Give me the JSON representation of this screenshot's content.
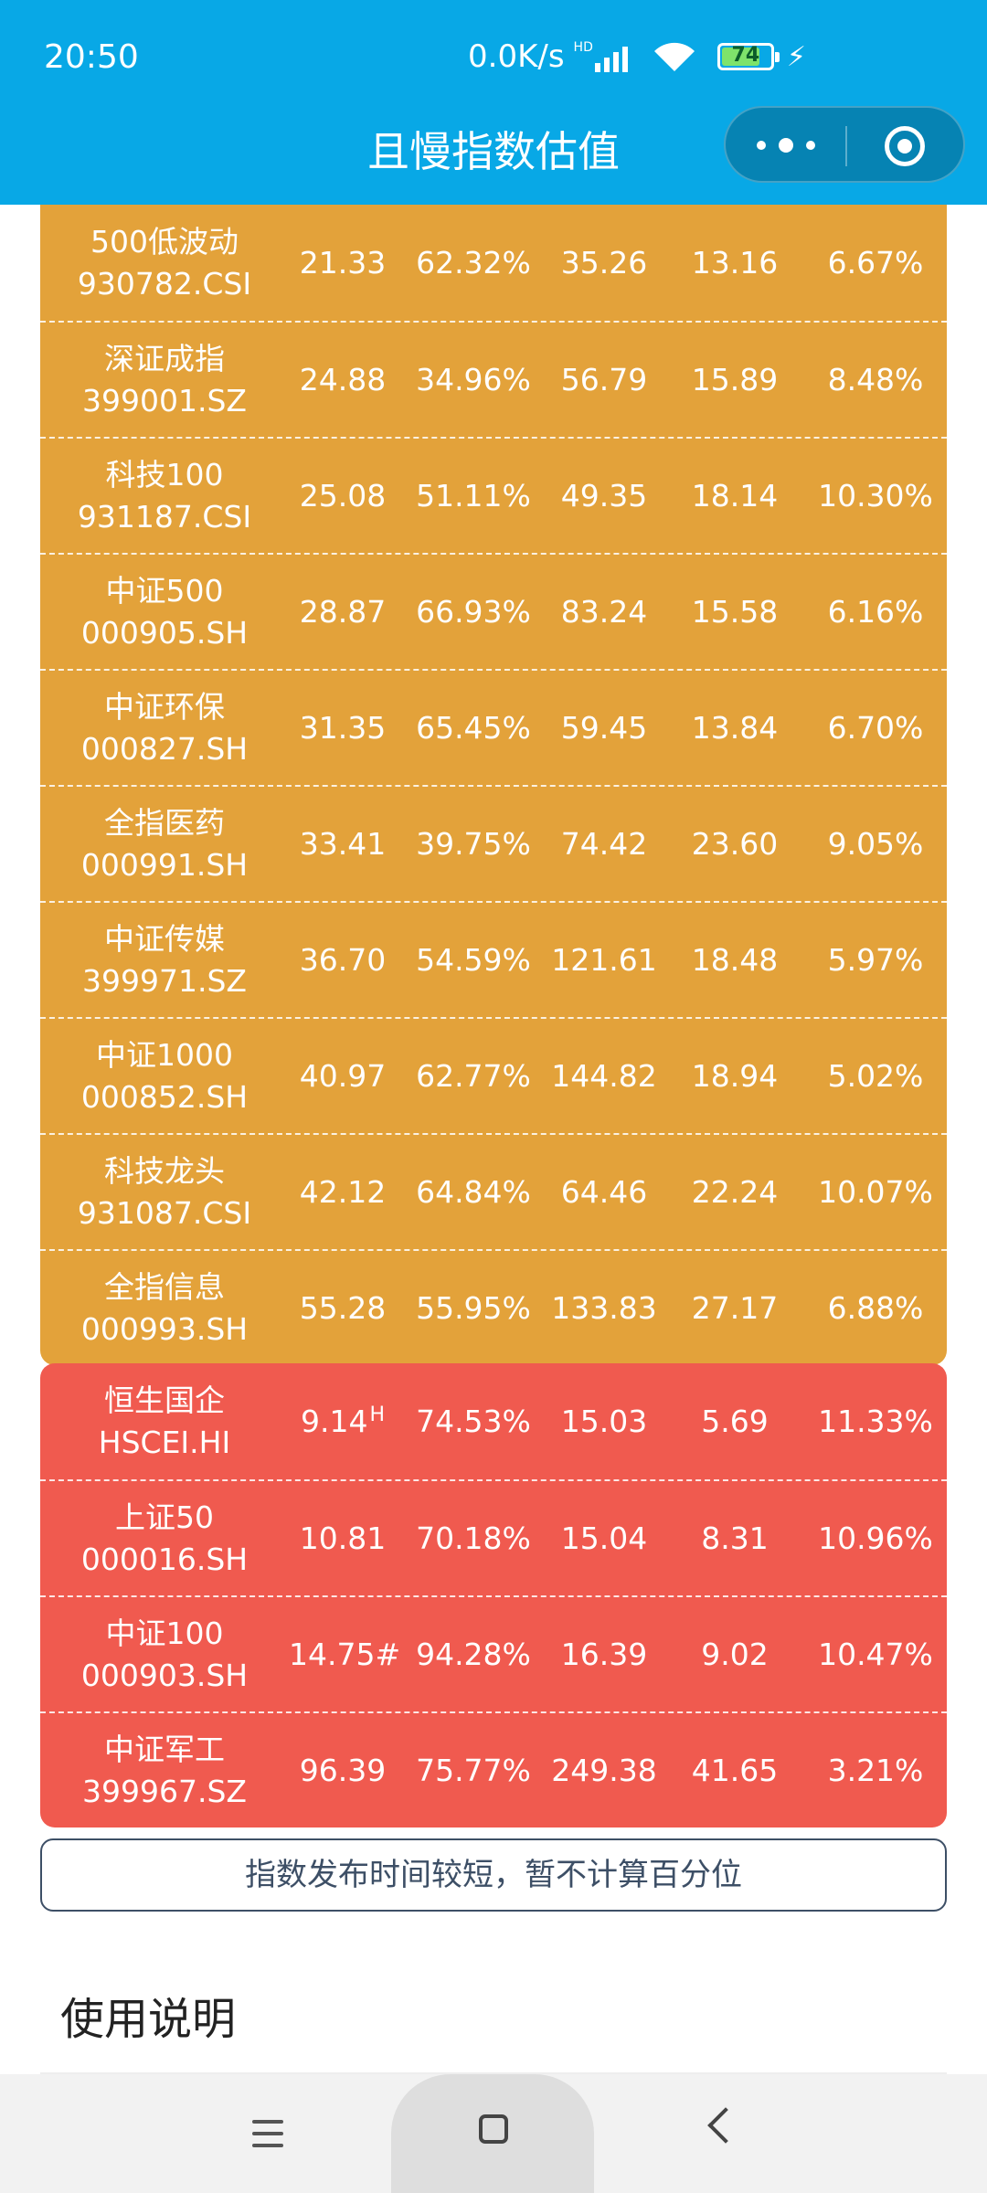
{
  "status_bar": {
    "time": "20:50",
    "network_speed": "0.0K/s",
    "hd_badge": "HD",
    "battery": "74",
    "icons": [
      "signal-icon",
      "wifi-icon",
      "battery-icon",
      "charging-bolt-icon"
    ]
  },
  "header": {
    "title": "且慢指数估值",
    "capsule_icons": [
      "more-dots-icon",
      "target-close-icon"
    ],
    "color": "#08a8e6"
  },
  "orange_group": {
    "color": "#e3a23a",
    "rows": [
      {
        "name": "500低波动",
        "code": "930782.CSI",
        "v1": "21.33",
        "v2": "62.32%",
        "v3": "35.26",
        "v4": "13.16",
        "v5": "6.67%"
      },
      {
        "name": "深证成指",
        "code": "399001.SZ",
        "v1": "24.88",
        "v2": "34.96%",
        "v3": "56.79",
        "v4": "15.89",
        "v5": "8.48%"
      },
      {
        "name": "科技100",
        "code": "931187.CSI",
        "v1": "25.08",
        "v2": "51.11%",
        "v3": "49.35",
        "v4": "18.14",
        "v5": "10.30%"
      },
      {
        "name": "中证500",
        "code": "000905.SH",
        "v1": "28.87",
        "v2": "66.93%",
        "v3": "83.24",
        "v4": "15.58",
        "v5": "6.16%"
      },
      {
        "name": "中证环保",
        "code": "000827.SH",
        "v1": "31.35",
        "v2": "65.45%",
        "v3": "59.45",
        "v4": "13.84",
        "v5": "6.70%"
      },
      {
        "name": "全指医药",
        "code": "000991.SH",
        "v1": "33.41",
        "v2": "39.75%",
        "v3": "74.42",
        "v4": "23.60",
        "v5": "9.05%"
      },
      {
        "name": "中证传媒",
        "code": "399971.SZ",
        "v1": "36.70",
        "v2": "54.59%",
        "v3": "121.61",
        "v4": "18.48",
        "v5": "5.97%"
      },
      {
        "name": "中证1000",
        "code": "000852.SH",
        "v1": "40.97",
        "v2": "62.77%",
        "v3": "144.82",
        "v4": "18.94",
        "v5": "5.02%"
      },
      {
        "name": "科技龙头",
        "code": "931087.CSI",
        "v1": "42.12",
        "v2": "64.84%",
        "v3": "64.46",
        "v4": "22.24",
        "v5": "10.07%"
      },
      {
        "name": "全指信息",
        "code": "000993.SH",
        "v1": "55.28",
        "v2": "55.95%",
        "v3": "133.83",
        "v4": "27.17",
        "v5": "6.88%"
      }
    ]
  },
  "red_group": {
    "color": "#f05a4f",
    "rows": [
      {
        "name": "恒生国企",
        "code": "HSCEI.HI",
        "v1": "9.14",
        "v1_suffix": "H",
        "v2": "74.53%",
        "v3": "15.03",
        "v4": "5.69",
        "v5": "11.33%"
      },
      {
        "name": "上证50",
        "code": "000016.SH",
        "v1": "10.81",
        "v2": "70.18%",
        "v3": "15.04",
        "v4": "8.31",
        "v5": "10.96%"
      },
      {
        "name": "中证100",
        "code": "000903.SH",
        "v1": "14.75#",
        "v2": "94.28%",
        "v3": "16.39",
        "v4": "9.02",
        "v5": "10.47%"
      },
      {
        "name": "中证军工",
        "code": "399967.SZ",
        "v1": "96.39",
        "v2": "75.77%",
        "v3": "249.38",
        "v4": "41.65",
        "v5": "3.21%"
      }
    ]
  },
  "note": "指数发布时间较短，暂不计算百分位",
  "section_title": "使用说明",
  "navbar_icons": [
    "menu-icon",
    "home-icon",
    "back-icon"
  ]
}
